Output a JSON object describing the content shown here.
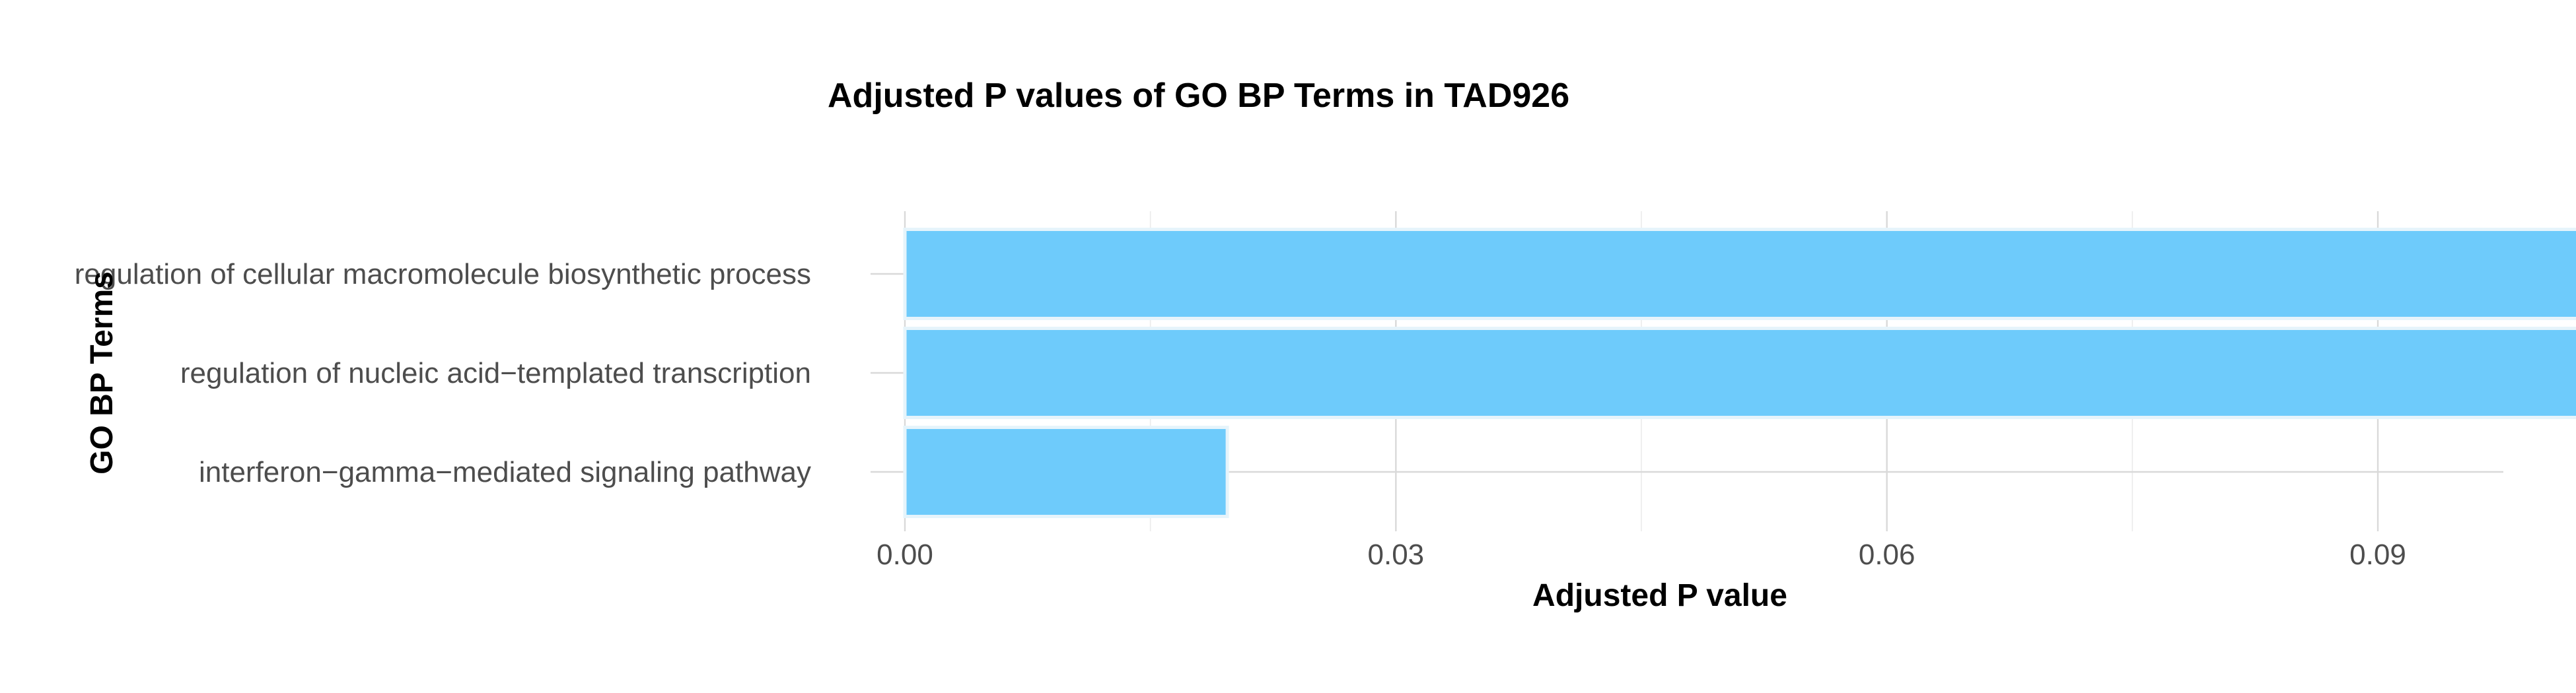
{
  "chart_data": {
    "type": "bar",
    "orientation": "horizontal",
    "title": "Adjusted P values of GO BP Terms in TAD926",
    "xlabel": "Adjusted P value",
    "ylabel": "GO BP Terms",
    "categories": [
      "regulation of cellular macromolecule biosynthetic process",
      "regulation of nucleic acid−templated transcription",
      "interferon−gamma−mediated signaling pathway"
    ],
    "values": [
      0.1085,
      0.106,
      0.0197
    ],
    "xlim": [
      0,
      0.114
    ],
    "xticks": [
      0,
      0.03,
      0.06,
      0.09
    ],
    "xtick_labels": [
      "0.00",
      "0.03",
      "0.06",
      "0.09"
    ],
    "grid": true,
    "legend": false,
    "bar_color": "#6ecbfb"
  }
}
